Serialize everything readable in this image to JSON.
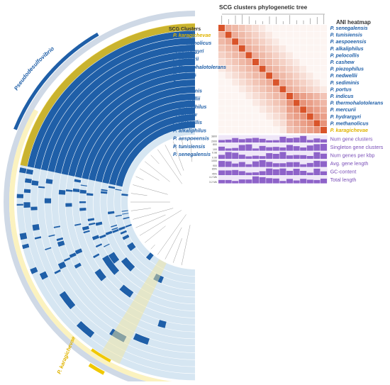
{
  "titles": {
    "tree": "SCG clusters phylogenetic tree",
    "ani": "ANI heatmap",
    "scg": "SCG Clusters"
  },
  "clades": {
    "blue": "Pseudodesulfovibrio",
    "yellow": "P. karagichevae"
  },
  "species": [
    "P. karagichevae",
    "P. methanolicus",
    "P. hydrargyri",
    "P. mercurii",
    "P. thermohalotolerans",
    "P. indicus",
    "P. portus",
    "P. sediminis",
    "P. nedwellii",
    "P. piezophilus",
    "P. cashew",
    "P. pelocollis",
    "P. alkaliphilus",
    "P. aespoeensis",
    "P. tunisiensis",
    "P. senegalensis"
  ],
  "heatmap_species": [
    "P. senegalensis",
    "P. tunisiensis",
    "P. aespoeensis",
    "P. alkaliphilus",
    "P. pelocollis",
    "P. cashew",
    "P. piezophilus",
    "P. nedwellii",
    "P. sediminis",
    "P. portus",
    "P. indicus",
    "P. thermohalotolerans",
    "P. mercurii",
    "P. hydrargyri",
    "P. methanolicus",
    "P. karagichevae"
  ],
  "metrics": [
    {
      "label": "Num gene clusters",
      "ticks": [
        "3800",
        "2000"
      ]
    },
    {
      "label": "Singleton gene clusters",
      "ticks": [
        "800",
        "100"
      ]
    },
    {
      "label": "Num genes per kbp",
      "ticks": [
        "0.98",
        "0.90"
      ]
    },
    {
      "label": "Avg. gene length",
      "ticks": [
        "1000",
        "900"
      ]
    },
    {
      "label": "GC-content",
      "ticks": [
        "65%",
        "45%"
      ]
    },
    {
      "label": "Total length",
      "ticks": [
        "4.2 Mb",
        "3.2 Mb"
      ]
    }
  ],
  "colors": {
    "blue": "#1f5fa8",
    "light_blue": "#d6e6f2",
    "yellow": "#f0c800",
    "heat": "#d9542a",
    "purple": "#8e63c9"
  }
}
